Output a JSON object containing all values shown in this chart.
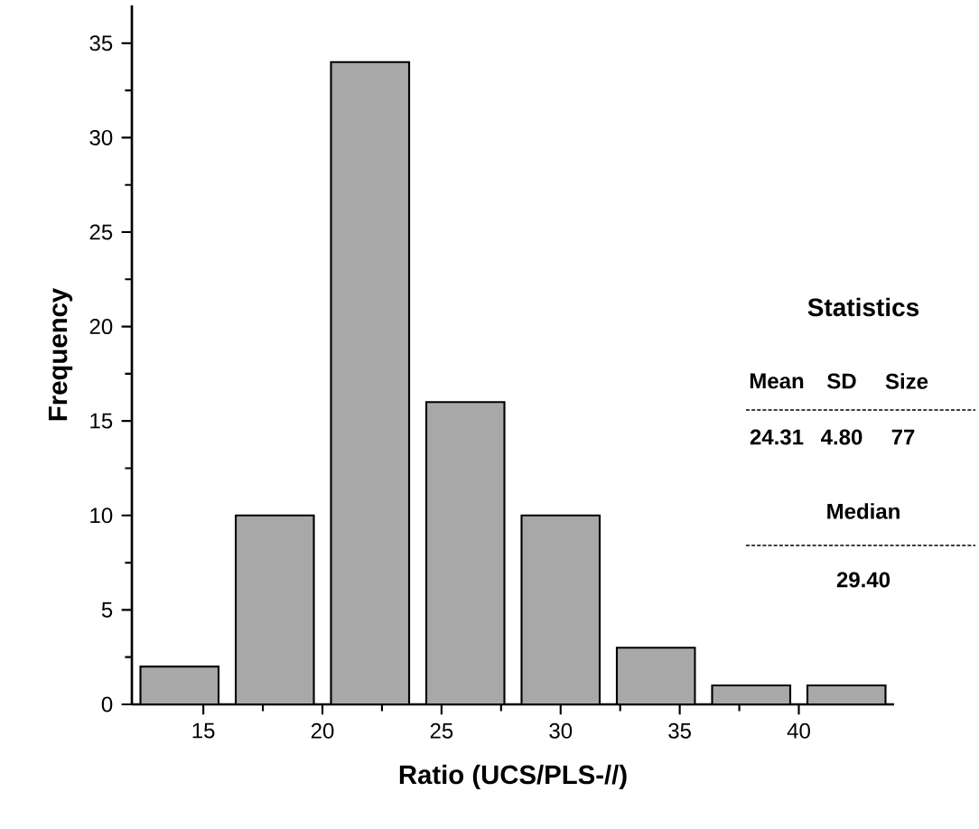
{
  "chart_data": {
    "type": "histogram",
    "xlabel": "Ratio (UCS/PLS-//)",
    "ylabel": "Frequency",
    "bins": [
      12,
      16,
      20,
      24,
      28,
      32,
      36,
      40,
      44
    ],
    "values": [
      2,
      10,
      34,
      16,
      10,
      3,
      1,
      1
    ],
    "color": "#a8a8a8",
    "xlim": [
      12,
      44
    ],
    "ylim": [
      0,
      37
    ],
    "xticks": [
      15,
      20,
      25,
      30,
      35,
      40
    ],
    "yticks": [
      0,
      5,
      10,
      15,
      20,
      25,
      30,
      35
    ],
    "annotations": [
      "Statistics",
      "Mean",
      "SD",
      "Size",
      "24.31",
      "4.80",
      "77",
      "Median",
      "29.40"
    ]
  }
}
